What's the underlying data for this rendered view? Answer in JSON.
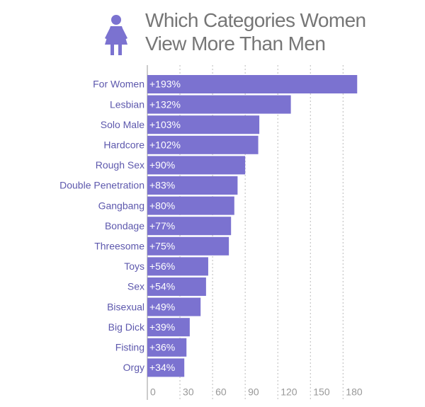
{
  "chart_data": {
    "type": "bar",
    "orientation": "horizontal",
    "title": "Which Categories Women View More Than Men",
    "categories": [
      "For Women",
      "Lesbian",
      "Solo Male",
      "Hardcore",
      "Rough Sex",
      "Double Penetration",
      "Gangbang",
      "Bondage",
      "Threesome",
      "Toys",
      "Sex",
      "Bisexual",
      "Big Dick",
      "Fisting",
      "Orgy"
    ],
    "values": [
      193,
      132,
      103,
      102,
      90,
      83,
      80,
      77,
      75,
      56,
      54,
      49,
      39,
      36,
      34
    ],
    "value_labels": [
      "+193%",
      "+132%",
      "+103%",
      "+102%",
      "+90%",
      "+83%",
      "+80%",
      "+77%",
      "+75%",
      "+56%",
      "+54%",
      "+49%",
      "+39%",
      "+36%",
      "+34%"
    ],
    "color": "#7b72d0",
    "xlim": [
      0,
      200
    ],
    "xticks": [
      0,
      30,
      60,
      90,
      120,
      150,
      180
    ],
    "grid": true
  }
}
